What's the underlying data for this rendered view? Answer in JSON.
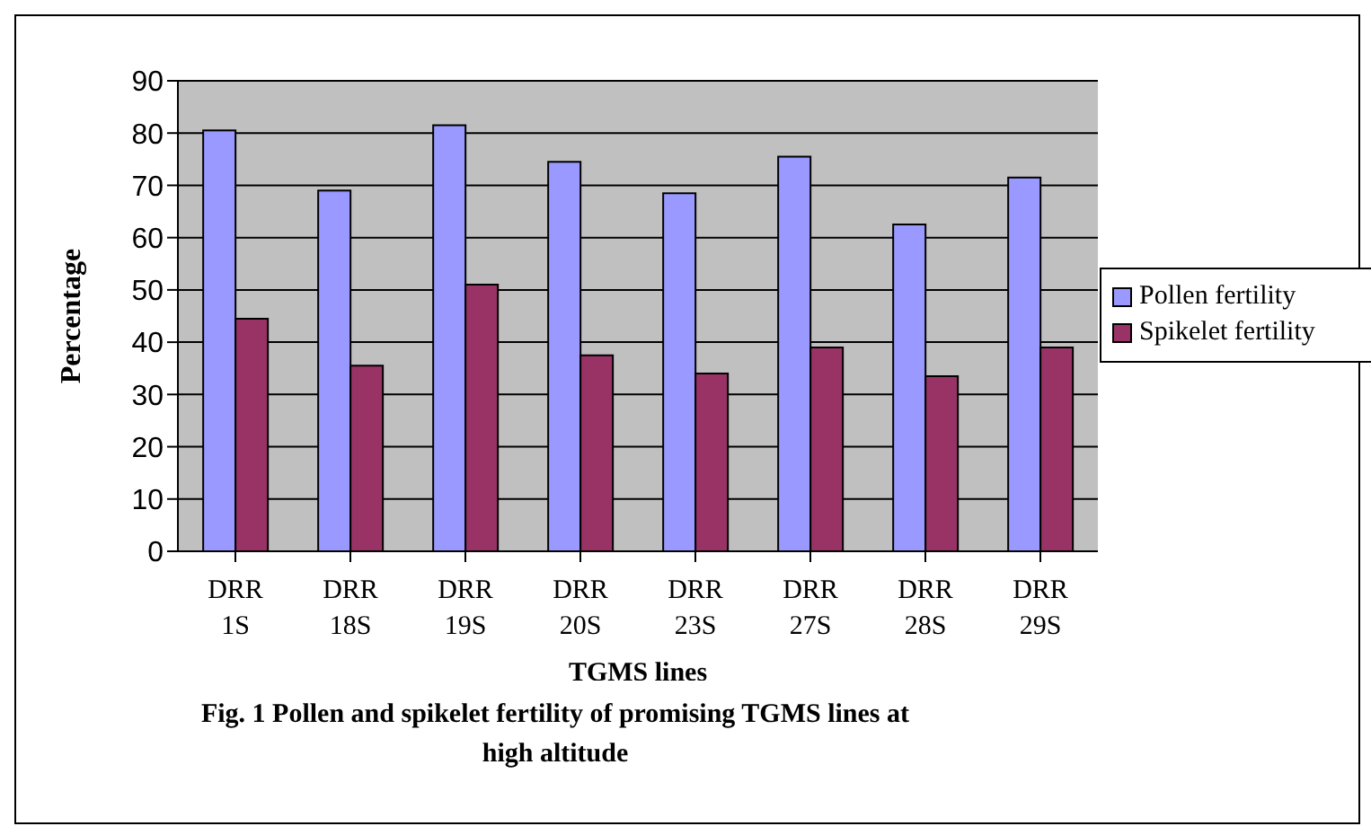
{
  "chart_data": {
    "type": "bar",
    "title": "Fig. 1 Pollen and spikelet fertility of promising TGMS lines at high altitude",
    "xlabel": "TGMS lines",
    "ylabel": "Percentage",
    "categories": [
      "DRR 1S",
      "DRR 18S",
      "DRR 19S",
      "DRR 20S",
      "DRR 23S",
      "DRR 27S",
      "DRR 28S",
      "DRR 29S"
    ],
    "series": [
      {
        "name": "Pollen fertility",
        "color": "#9999ff",
        "values": [
          80.5,
          69,
          81.5,
          74.5,
          68.5,
          75.5,
          62.5,
          71.5
        ]
      },
      {
        "name": "Spikelet fertility",
        "color": "#993366",
        "values": [
          44.5,
          35.5,
          51,
          37.5,
          34,
          39,
          33.5,
          39
        ]
      }
    ],
    "ylim": [
      0,
      90
    ],
    "yticks": [
      0,
      10,
      20,
      30,
      40,
      50,
      60,
      70,
      80,
      90
    ],
    "grid": "y",
    "legend": "right"
  }
}
